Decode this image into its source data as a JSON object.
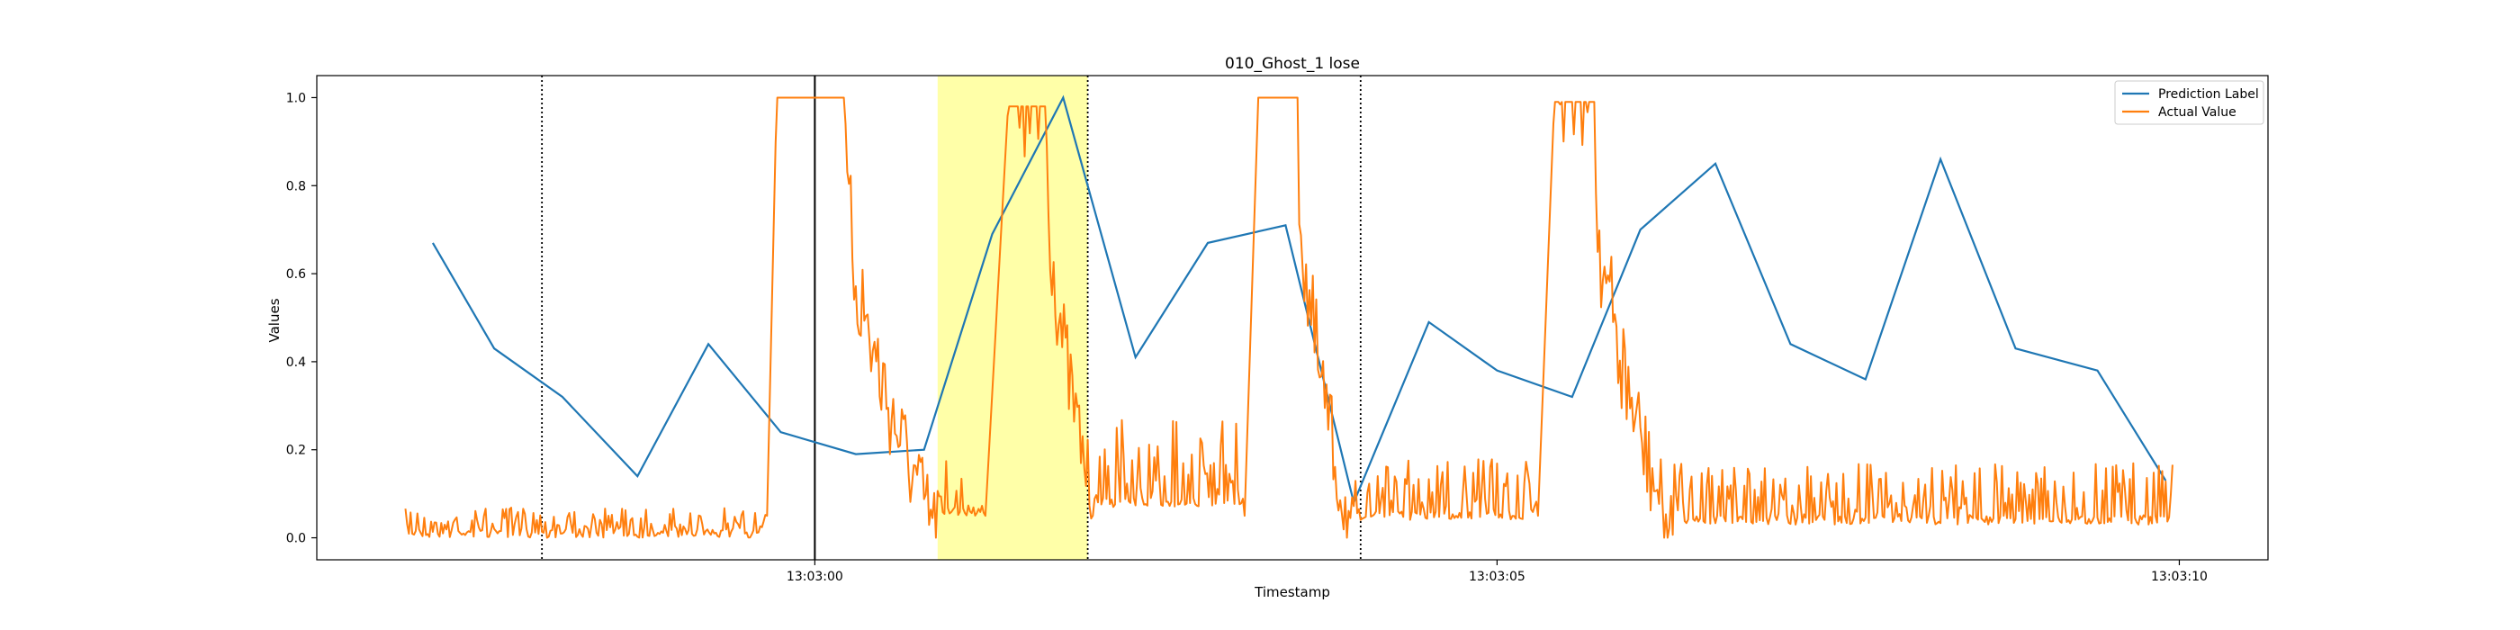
{
  "chart_data": {
    "type": "line",
    "title": "010_Ghost_1 lose",
    "xlabel": "Timestamp",
    "ylabel": "Values",
    "xlim": [
      -3.65,
      10.65
    ],
    "ylim": [
      -0.05,
      1.05
    ],
    "x_ticks": [
      {
        "value": 0,
        "label": "13:03:00"
      },
      {
        "value": 5,
        "label": "13:03:05"
      },
      {
        "value": 10,
        "label": "13:03:10"
      }
    ],
    "y_ticks": [
      0.0,
      0.2,
      0.4,
      0.6,
      0.8,
      1.0
    ],
    "y_tick_labels": [
      "0.0",
      "0.2",
      "0.4",
      "0.6",
      "0.8",
      "1.0"
    ],
    "grid": false,
    "legend_position": "top-right",
    "highlight_span": {
      "x0": 0.9,
      "x1": 2.0,
      "color": "#ffffa8"
    },
    "vertical_lines": [
      {
        "x": -2.0,
        "style": "dotted",
        "color": "#000000"
      },
      {
        "x": 0.0,
        "style": "solid",
        "color": "#000000"
      },
      {
        "x": 2.0,
        "style": "dotted",
        "color": "#000000"
      },
      {
        "x": 4.0,
        "style": "dotted",
        "color": "#000000"
      }
    ],
    "series": [
      {
        "name": "Prediction Label",
        "color": "#1f77b4",
        "x": [
          -2.8,
          -2.35,
          -1.85,
          -1.3,
          -0.78,
          -0.25,
          0.3,
          0.8,
          1.3,
          1.82,
          2.35,
          2.88,
          3.45,
          3.95,
          4.5,
          5.0,
          5.55,
          6.05,
          6.6,
          7.15,
          7.7,
          8.25,
          8.8,
          9.4,
          9.9
        ],
        "y": [
          0.67,
          0.43,
          0.32,
          0.14,
          0.44,
          0.24,
          0.19,
          0.2,
          0.69,
          1.0,
          0.41,
          0.67,
          0.71,
          0.08,
          0.49,
          0.38,
          0.32,
          0.7,
          0.85,
          0.44,
          0.36,
          0.86,
          0.43,
          0.38,
          0.13
        ]
      },
      {
        "name": "Actual Value",
        "color": "#ff7f0e",
        "x_start": -3.0,
        "x_end": 9.95,
        "baseline": 0.02,
        "noise_amplitude": 0.07,
        "seed": 7,
        "segments": [
          {
            "x0": -3.0,
            "x1": -0.35,
            "level": 0.02,
            "noise": 0.05
          },
          {
            "x0": -0.35,
            "x1": -0.28,
            "rise_to": 1.0
          },
          {
            "x0": -0.28,
            "x1": 0.22,
            "level": 1.0,
            "noise": 0.0
          },
          {
            "x0": 0.22,
            "x1": 0.9,
            "decay_to": 0.1,
            "noise": 0.3
          },
          {
            "x0": 0.9,
            "x1": 1.25,
            "level": 0.07,
            "noise": 0.12
          },
          {
            "x0": 1.25,
            "x1": 1.42,
            "rise_to": 1.0
          },
          {
            "x0": 1.42,
            "x1": 1.7,
            "level": 0.98,
            "noise": 0.2
          },
          {
            "x0": 1.7,
            "x1": 2.05,
            "decay_to": 0.15,
            "noise": 0.25
          },
          {
            "x0": 2.05,
            "x1": 3.15,
            "level": 0.09,
            "noise": 0.18
          },
          {
            "x0": 3.15,
            "x1": 3.25,
            "rise_to": 1.0
          },
          {
            "x0": 3.25,
            "x1": 3.55,
            "level": 1.0,
            "noise": 0.0
          },
          {
            "x0": 3.55,
            "x1": 3.95,
            "decay_to": 0.08,
            "noise": 0.3
          },
          {
            "x0": 3.95,
            "x1": 5.3,
            "level": 0.06,
            "noise": 0.12
          },
          {
            "x0": 5.3,
            "x1": 5.42,
            "rise_to": 1.0
          },
          {
            "x0": 5.42,
            "x1": 5.72,
            "level": 0.99,
            "noise": 0.1
          },
          {
            "x0": 5.72,
            "x1": 6.3,
            "decay_to": 0.08,
            "noise": 0.3
          },
          {
            "x0": 6.3,
            "x1": 9.95,
            "level": 0.05,
            "noise": 0.12
          }
        ]
      }
    ]
  }
}
